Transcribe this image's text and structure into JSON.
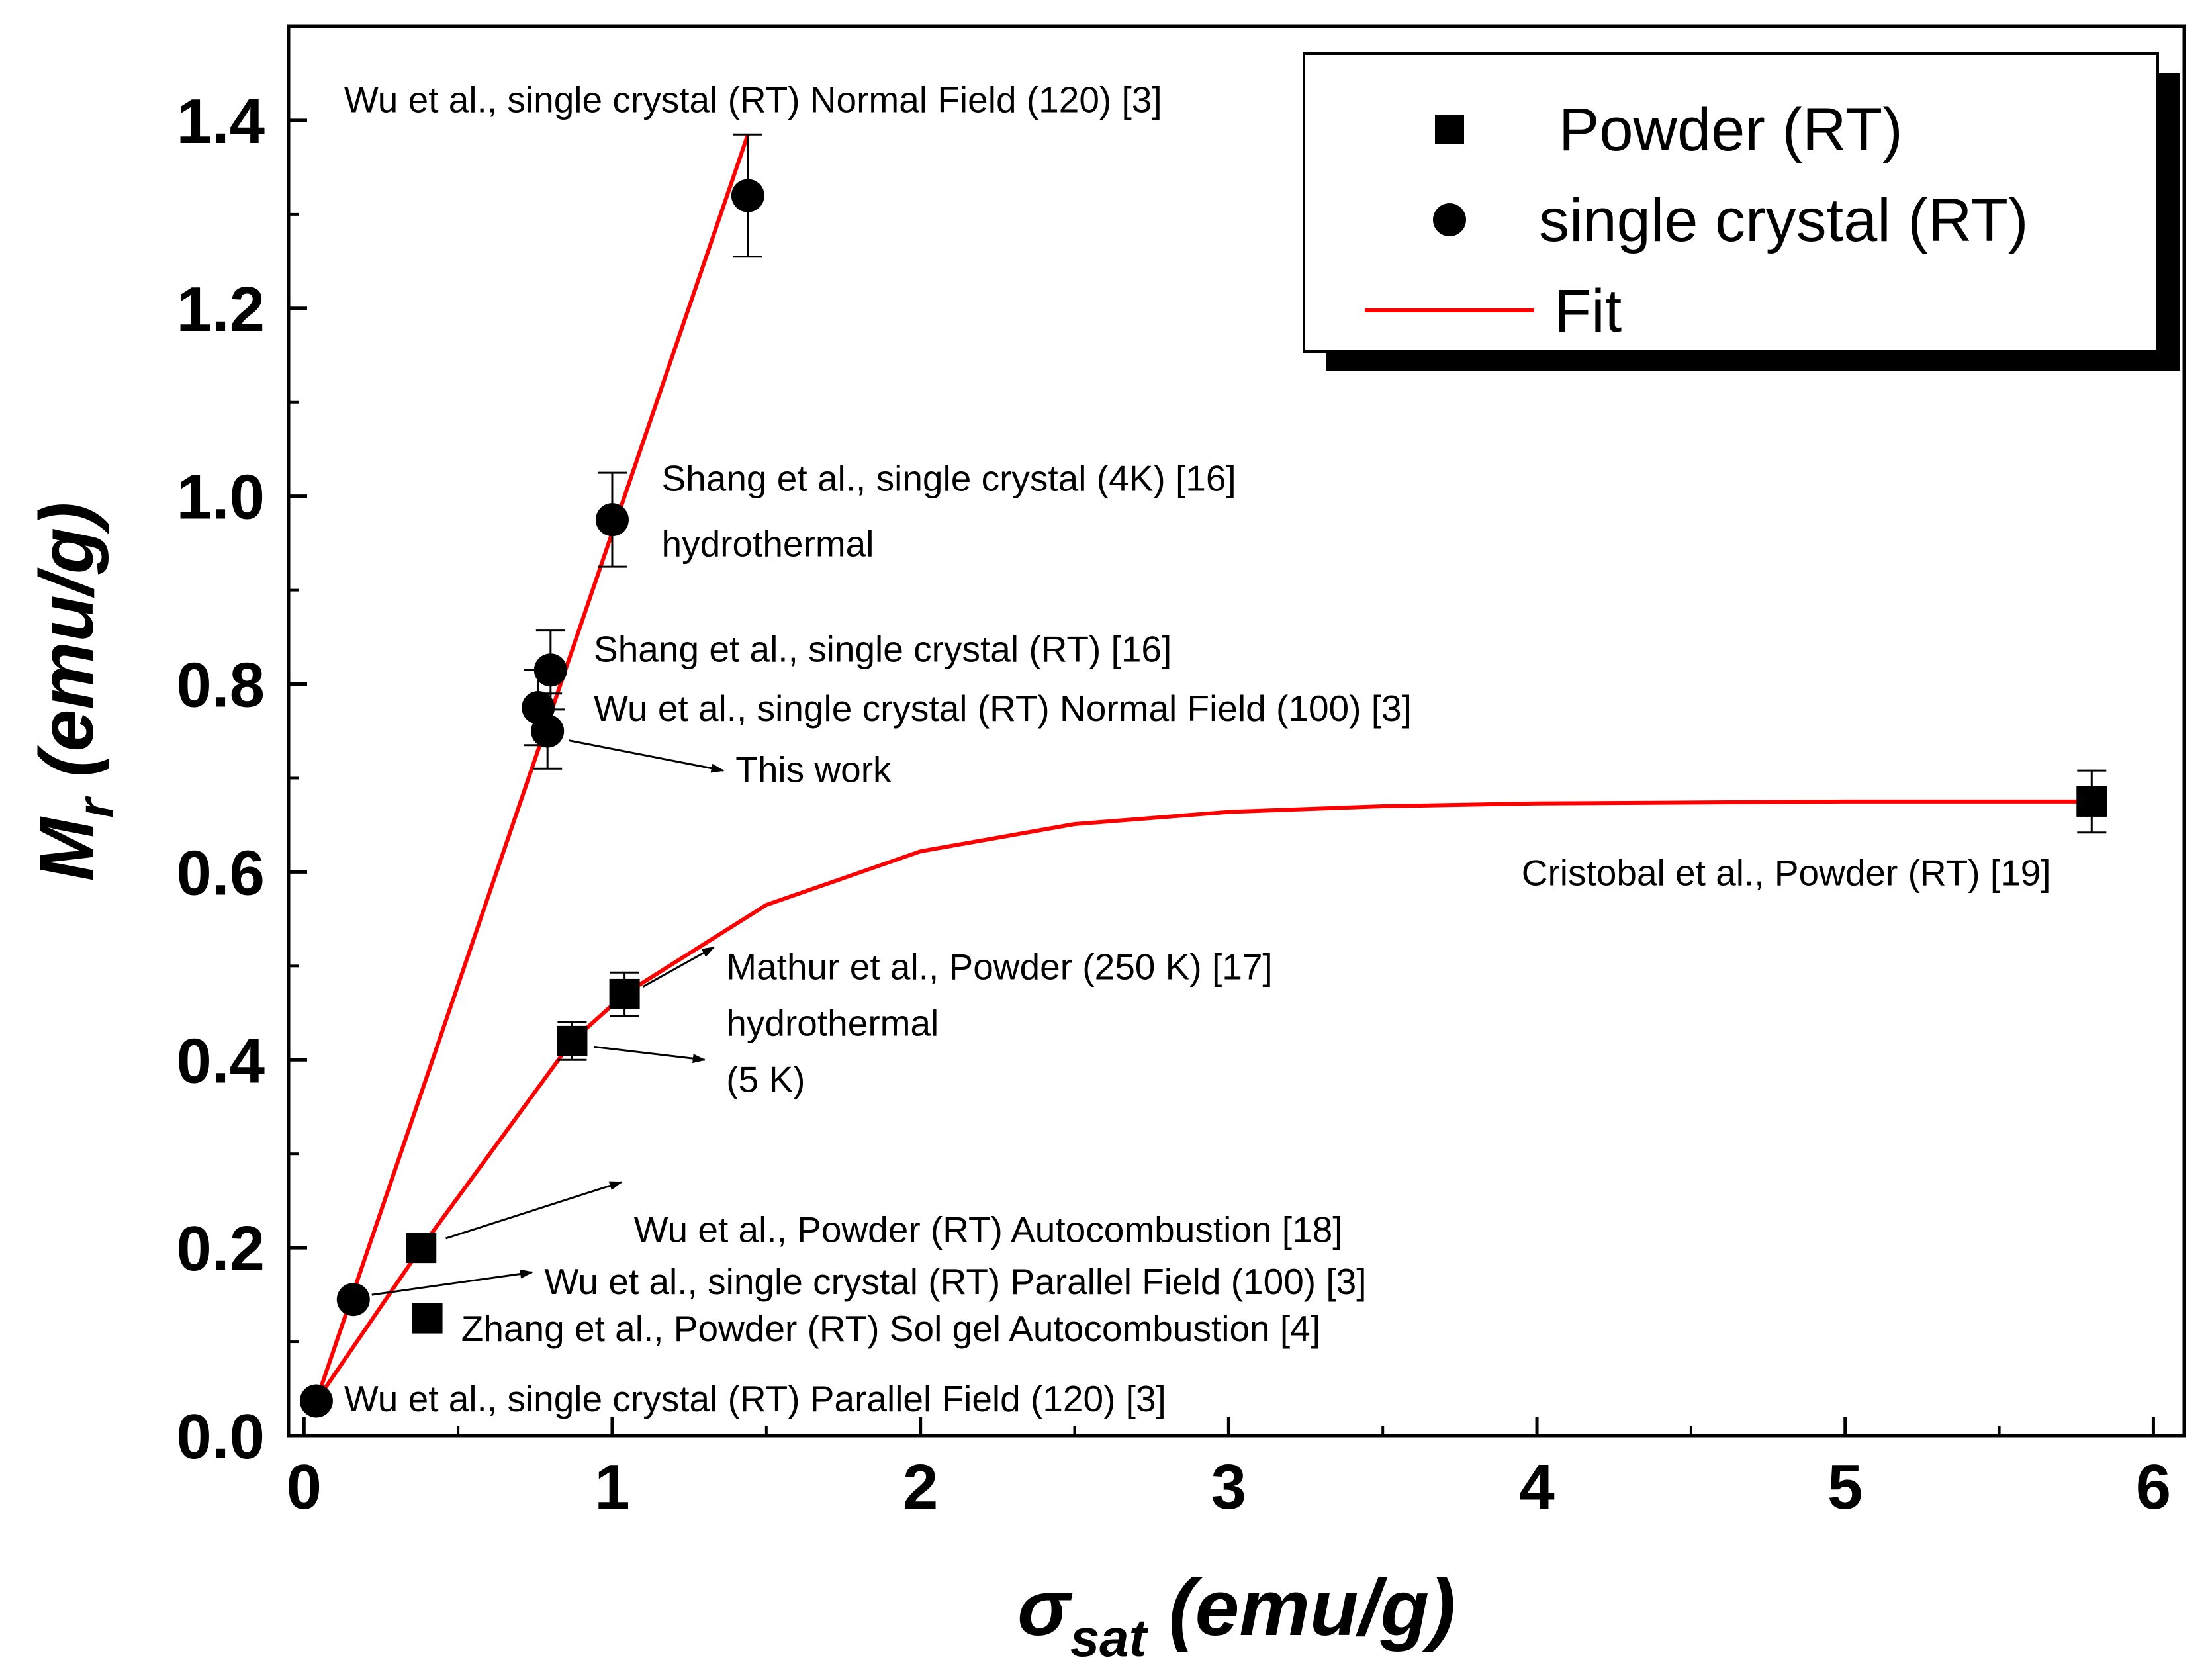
{
  "chart_data": {
    "type": "scatter",
    "title": "",
    "xlabel": {
      "symbol": "σ",
      "sub": "sat",
      "units": " (emu/g)"
    },
    "ylabel": {
      "symbol": "M",
      "sub": "r",
      "units": " (emu/g)"
    },
    "xlim": [
      -0.05,
      6.1
    ],
    "ylim": [
      0,
      1.5
    ],
    "grid": false,
    "x_ticks": [
      0,
      1,
      2,
      3,
      4,
      5,
      6
    ],
    "x_tick_labels": [
      "0",
      "1",
      "2",
      "3",
      "4",
      "5",
      "6"
    ],
    "y_ticks": [
      0.0,
      0.2,
      0.4,
      0.6,
      0.8,
      1.0,
      1.2,
      1.4
    ],
    "y_tick_labels": [
      "0.0",
      "0.2",
      "0.4",
      "0.6",
      "0.8",
      "1.0",
      "1.2",
      "1.4"
    ],
    "legend": {
      "position": "top-right",
      "entries": [
        {
          "label": "Powder (RT)",
          "marker": "square"
        },
        {
          "label": "single crystal (RT)",
          "marker": "circle"
        },
        {
          "label": "Fit",
          "marker": "line",
          "color": "#ff0000"
        }
      ]
    },
    "series": [
      {
        "name": "Powder (RT)",
        "marker": "square",
        "color": "#000000",
        "points": [
          {
            "x": 0.38,
            "y": 0.2
          },
          {
            "x": 0.4,
            "y": 0.125
          },
          {
            "x": 0.87,
            "y": 0.42,
            "err": 0.02
          },
          {
            "x": 1.04,
            "y": 0.47,
            "err": 0.023
          },
          {
            "x": 5.8,
            "y": 0.675,
            "err": 0.033,
            "xerr": 0.04
          }
        ]
      },
      {
        "name": "single crystal (RT)",
        "marker": "circle",
        "color": "#000000",
        "points": [
          {
            "x": 0.04,
            "y": 0.037
          },
          {
            "x": 0.16,
            "y": 0.145
          },
          {
            "x": 0.76,
            "y": 0.775,
            "err": 0.04,
            "xerr": 0.03
          },
          {
            "x": 0.8,
            "y": 0.815,
            "err": 0.042
          },
          {
            "x": 0.79,
            "y": 0.75,
            "err": 0.04
          },
          {
            "x": 1.0,
            "y": 0.975,
            "err": 0.05
          },
          {
            "x": 1.44,
            "y": 1.32,
            "err": 0.065
          }
        ]
      },
      {
        "name": "Fit",
        "type": "line",
        "color": "#ff0000",
        "curves": [
          {
            "x": [
              0.04,
              1.44
            ],
            "y": [
              0.037,
              1.385
            ]
          },
          {
            "x": [
              0.04,
              0.38,
              0.87,
              1.04,
              1.5,
              2.0,
              2.5,
              3.0,
              3.5,
              4.0,
              4.5,
              5.0,
              5.5,
              5.8
            ],
            "y": [
              0.037,
              0.2,
              0.42,
              0.47,
              0.565,
              0.622,
              0.651,
              0.664,
              0.67,
              0.673,
              0.674,
              0.675,
              0.675,
              0.675
            ]
          }
        ]
      }
    ],
    "annotations": [
      {
        "text": "Wu et al., single crystal (RT) Normal Field (120) [3]",
        "x": 0.13,
        "y": 1.423
      },
      {
        "text": "Shang et al., single crystal (4K) [16]",
        "x": 1.16,
        "y": 1.02
      },
      {
        "text": "hydrothermal",
        "x": 1.16,
        "y": 0.95
      },
      {
        "text": "Shang et al., single crystal (RT) [16]",
        "x": 0.94,
        "y": 0.838
      },
      {
        "text": "Wu et al., single crystal (RT) Normal Field  (100) [3]",
        "x": 0.94,
        "y": 0.775
      },
      {
        "text": "This work",
        "x": 1.4,
        "y": 0.71,
        "arrow_from": [
          0.86,
          0.74
        ],
        "arrow_to": [
          1.36,
          0.708
        ]
      },
      {
        "text": "Cristobal et al., Powder (RT) [19]",
        "x": 3.95,
        "y": 0.6
      },
      {
        "text": "Mathur et al., Powder (250 K) [17]",
        "x": 1.37,
        "y": 0.5,
        "arrow_from": [
          1.1,
          0.478
        ],
        "arrow_to": [
          1.33,
          0.52
        ]
      },
      {
        "text": "hydrothermal",
        "x": 1.37,
        "y": 0.44
      },
      {
        "text": "(5 K)",
        "x": 1.37,
        "y": 0.38,
        "arrow_from": [
          0.94,
          0.414
        ],
        "arrow_to": [
          1.3,
          0.4
        ]
      },
      {
        "text": "Wu et al., Powder (RT) Autocombustion [18]",
        "x": 1.07,
        "y": 0.22,
        "arrow_from": [
          0.46,
          0.21
        ],
        "arrow_to": [
          1.03,
          0.27
        ]
      },
      {
        "text": "Wu et al., single crystal (RT) Parallel Field (100) [3]",
        "x": 0.78,
        "y": 0.165,
        "arrow_from": [
          0.22,
          0.15
        ],
        "arrow_to": [
          0.74,
          0.174
        ]
      },
      {
        "text": "Zhang et al., Powder (RT) Sol gel Autocombustion [4]",
        "x": 0.51,
        "y": 0.115
      },
      {
        "text": "Wu et al., single crystal (RT) Parallel Field (120) [3]",
        "x": 0.13,
        "y": 0.04
      }
    ]
  }
}
